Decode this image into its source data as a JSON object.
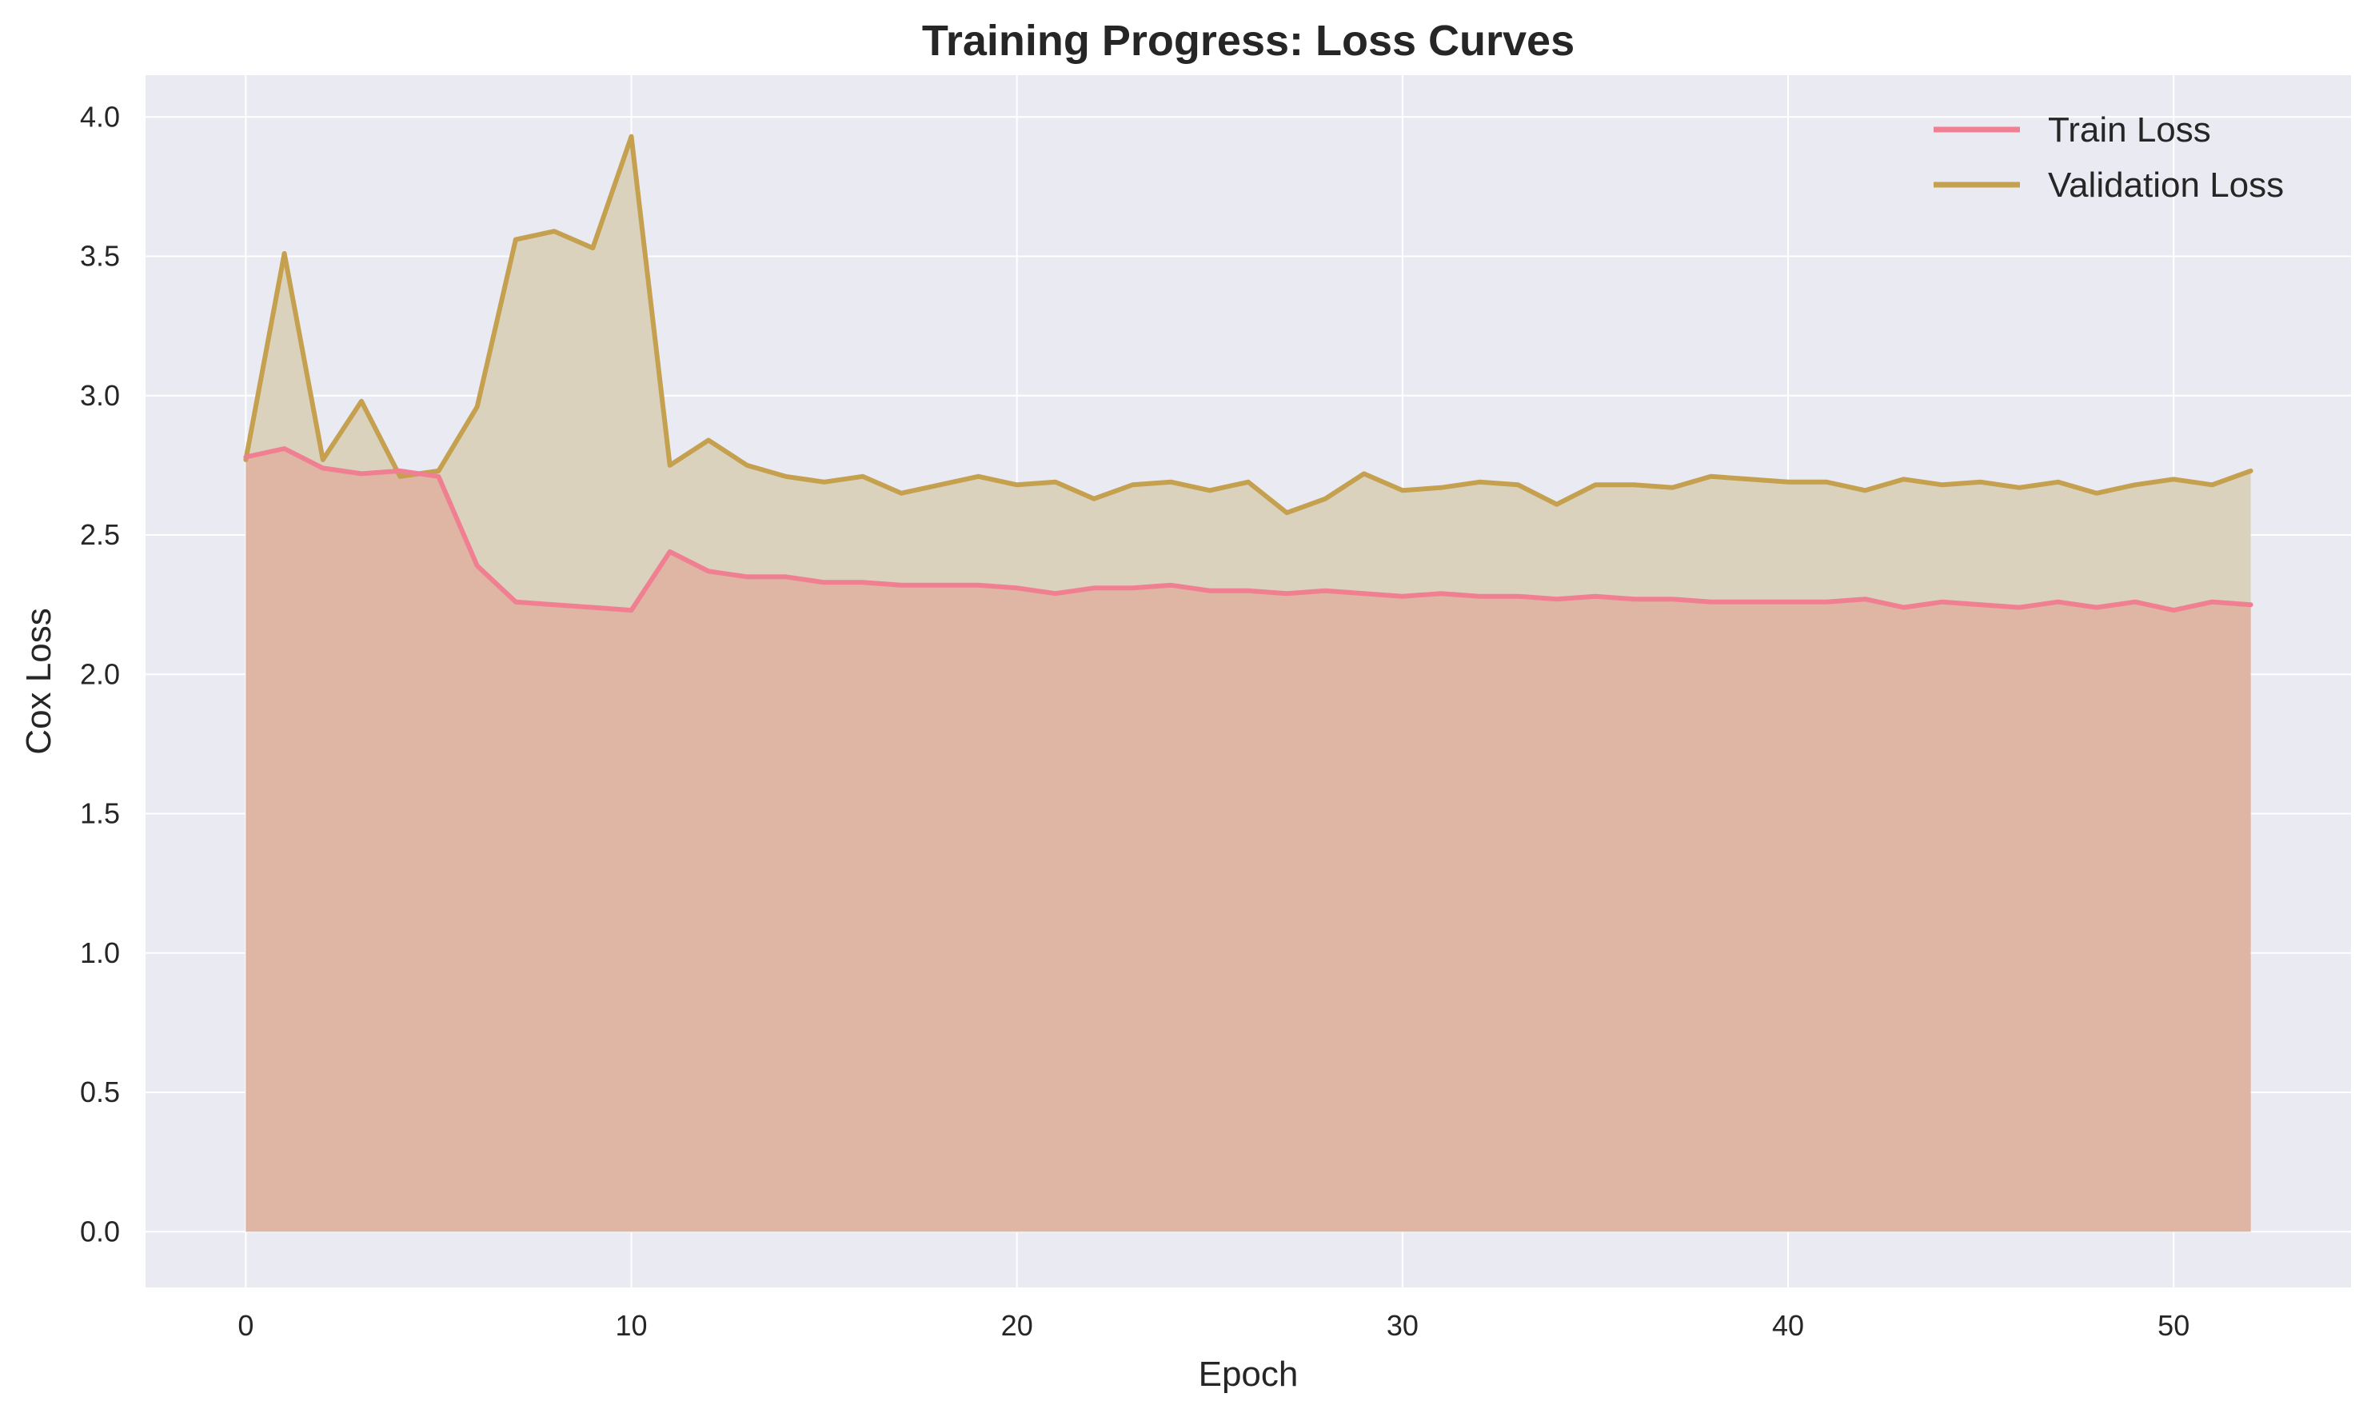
{
  "chart_data": {
    "type": "area",
    "title": "Training Progress: Loss Curves",
    "xlabel": "Epoch",
    "ylabel": "Cox Loss",
    "xlim": [
      -2.6,
      54.6
    ],
    "ylim": [
      -0.2,
      4.15
    ],
    "xticks": [
      0,
      10,
      20,
      30,
      40,
      50
    ],
    "xtick_labels": [
      "0",
      "10",
      "20",
      "30",
      "40",
      "50"
    ],
    "yticks": [
      0.0,
      0.5,
      1.0,
      1.5,
      2.0,
      2.5,
      3.0,
      3.5,
      4.0
    ],
    "ytick_labels": [
      "0.0",
      "0.5",
      "1.0",
      "1.5",
      "2.0",
      "2.5",
      "3.0",
      "3.5",
      "4.0"
    ],
    "grid": true,
    "legend_position": "top-right",
    "background_color": "#eaeaf2",
    "grid_color": "#ffffff",
    "x": [
      0,
      1,
      2,
      3,
      4,
      5,
      6,
      7,
      8,
      9,
      10,
      11,
      12,
      13,
      14,
      15,
      16,
      17,
      18,
      19,
      20,
      21,
      22,
      23,
      24,
      25,
      26,
      27,
      28,
      29,
      30,
      31,
      32,
      33,
      34,
      35,
      36,
      37,
      38,
      39,
      40,
      41,
      42,
      43,
      44,
      45,
      46,
      47,
      48,
      49,
      50,
      51,
      52
    ],
    "series": [
      {
        "name": "Train Loss",
        "color": "#f07f91",
        "fill_color": "#dfb3a2",
        "values": [
          2.78,
          2.81,
          2.74,
          2.72,
          2.73,
          2.71,
          2.39,
          2.26,
          2.25,
          2.24,
          2.23,
          2.44,
          2.37,
          2.35,
          2.35,
          2.33,
          2.33,
          2.32,
          2.32,
          2.32,
          2.31,
          2.29,
          2.31,
          2.31,
          2.32,
          2.3,
          2.3,
          2.29,
          2.3,
          2.29,
          2.28,
          2.29,
          2.28,
          2.28,
          2.27,
          2.28,
          2.27,
          2.27,
          2.26,
          2.26,
          2.26,
          2.26,
          2.27,
          2.24,
          2.26,
          2.25,
          2.24,
          2.26,
          2.24,
          2.26,
          2.23,
          2.26,
          2.25
        ]
      },
      {
        "name": "Validation Loss",
        "color": "#c4a04f",
        "fill_color": "#dbd2be",
        "values": [
          2.77,
          3.51,
          2.77,
          2.98,
          2.71,
          2.73,
          2.96,
          3.56,
          3.59,
          3.53,
          3.93,
          2.75,
          2.84,
          2.75,
          2.71,
          2.69,
          2.71,
          2.65,
          2.68,
          2.71,
          2.68,
          2.69,
          2.63,
          2.68,
          2.69,
          2.66,
          2.69,
          2.58,
          2.63,
          2.72,
          2.66,
          2.67,
          2.69,
          2.68,
          2.61,
          2.68,
          2.68,
          2.67,
          2.71,
          2.7,
          2.69,
          2.69,
          2.66,
          2.7,
          2.68,
          2.69,
          2.67,
          2.69,
          2.65,
          2.68,
          2.7,
          2.68,
          2.73
        ]
      }
    ]
  }
}
